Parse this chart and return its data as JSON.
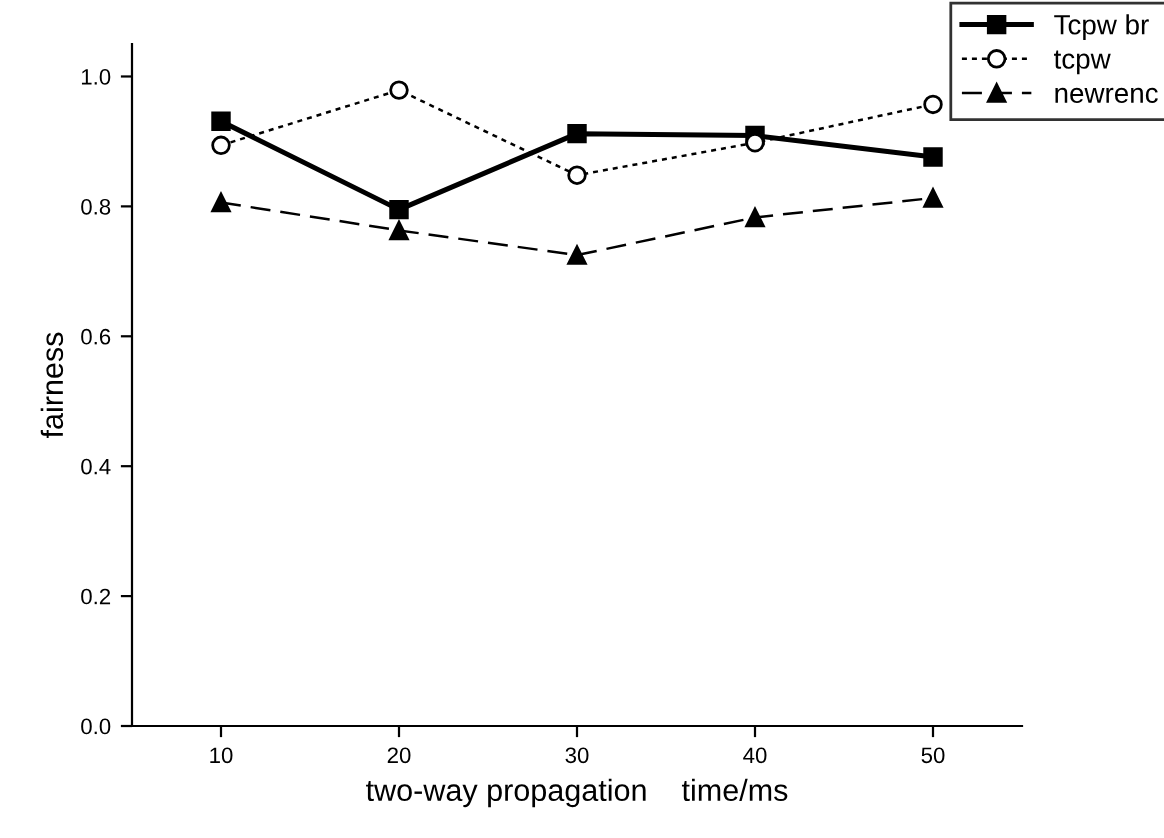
{
  "chart_data": {
    "type": "line",
    "xlabel": "two-way propagation    time/ms",
    "ylabel": "fairness",
    "x": [
      10,
      20,
      30,
      40,
      50
    ],
    "xlim": [
      5,
      55
    ],
    "xticks": [
      10,
      20,
      30,
      40,
      50
    ],
    "ylim": [
      0.0,
      1.05
    ],
    "yticks": [
      {
        "value": 0.0,
        "label": "0.0"
      },
      {
        "value": 0.2,
        "label": "0.2"
      },
      {
        "value": 0.4,
        "label": "0.4"
      },
      {
        "value": 0.6,
        "label": "0.6"
      },
      {
        "value": 0.8,
        "label": "0.8"
      },
      {
        "value": 1.0,
        "label": "1.0"
      }
    ],
    "grid": false,
    "legend": "top right",
    "series": [
      {
        "name": "Tcpw br",
        "color": "#000000",
        "marker": "square",
        "line_style": "solid",
        "values": [
          0.931,
          0.795,
          0.912,
          0.909,
          0.876
        ]
      },
      {
        "name": "tcpw",
        "color": "#000000",
        "marker": "circle",
        "line_style": "dotted",
        "values": [
          0.894,
          0.979,
          0.848,
          0.898,
          0.957
        ]
      },
      {
        "name": "newrenc",
        "color": "#000000",
        "marker": "triangle",
        "line_style": "dashed",
        "values": [
          0.806,
          0.763,
          0.725,
          0.783,
          0.813
        ]
      }
    ]
  }
}
